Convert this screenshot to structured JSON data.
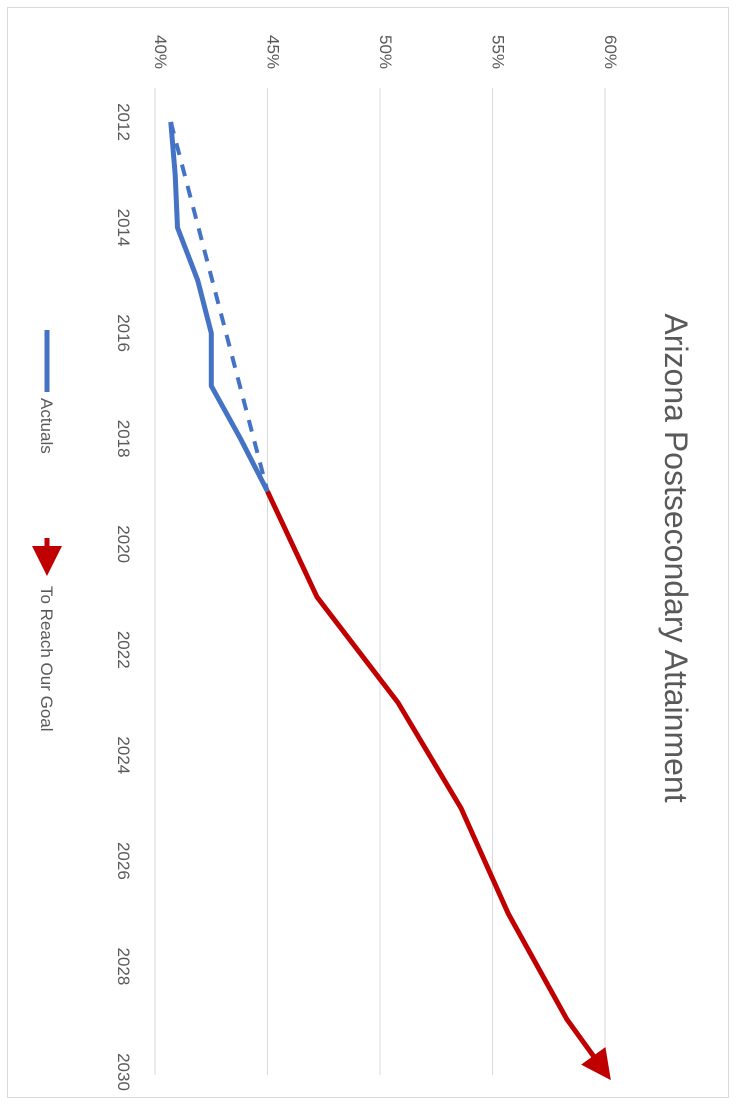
{
  "chart_data": {
    "type": "line",
    "title": "Arizona Postsecondary Attainment",
    "x_ticks": [
      "2012",
      "2014",
      "2016",
      "2018",
      "2020",
      "2022",
      "2024",
      "2026",
      "2028",
      "2030"
    ],
    "y_ticks": [
      "40%",
      "45%",
      "50%",
      "55%",
      "60%"
    ],
    "xlim": [
      2011,
      2030.5
    ],
    "ylim": [
      40,
      60
    ],
    "grid": true,
    "rotation": "rotated 90 degrees clockwise",
    "legend_position": "bottom",
    "series": [
      {
        "name": "Actuals",
        "color": "#4472c4",
        "style": "solid",
        "x": [
          2012,
          2013,
          2014,
          2015,
          2016,
          2017,
          2018,
          2019
        ],
        "y": [
          40.7,
          40.9,
          41.0,
          41.9,
          42.5,
          42.5,
          43.8,
          45.0
        ]
      },
      {
        "name": "",
        "color": "#4472c4",
        "style": "dashed",
        "x": [
          2012,
          2019
        ],
        "y": [
          40.7,
          45.0
        ]
      },
      {
        "name": "To Reach Our Goal",
        "color": "#c00000",
        "style": "solid-arrow",
        "x": [
          2019,
          2021,
          2023,
          2025,
          2027,
          2029,
          2030
        ],
        "y": [
          45.0,
          47.2,
          50.8,
          53.6,
          55.7,
          58.3,
          60.0
        ]
      }
    ]
  }
}
